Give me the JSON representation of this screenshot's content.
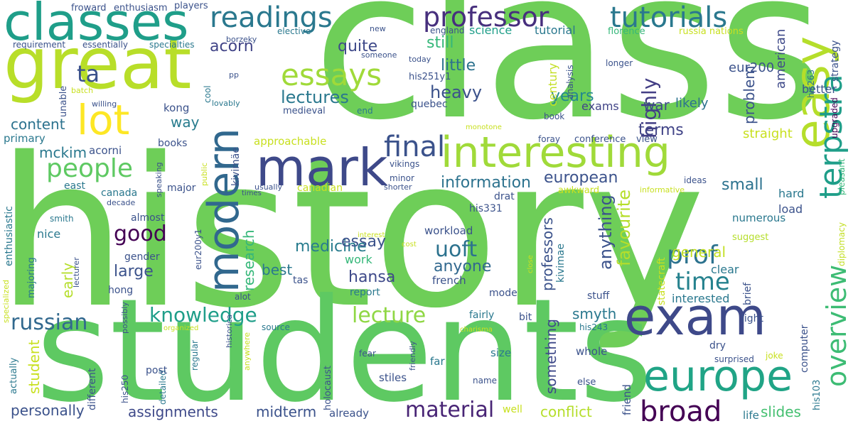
{
  "words": [
    {
      "text": "history",
      "color": "#6ece58"
    },
    {
      "text": "class",
      "color": "#6ece58"
    },
    {
      "text": "students",
      "color": "#5ec962"
    },
    {
      "text": "great",
      "color": "#b8de29"
    },
    {
      "text": "classes",
      "color": "#1f9e89"
    },
    {
      "text": "mark",
      "color": "#3e4989"
    },
    {
      "text": "exam",
      "color": "#3e4989"
    },
    {
      "text": "easy",
      "color": "#b5de2b"
    },
    {
      "text": "interesting",
      "color": "#a0da39"
    },
    {
      "text": "europe",
      "color": "#20a486"
    },
    {
      "text": "modern",
      "color": "#31688e"
    },
    {
      "text": "lot",
      "color": "#fde725"
    },
    {
      "text": "readings",
      "color": "#2a788e"
    },
    {
      "text": "professor",
      "color": "#472f7d"
    },
    {
      "text": "tutorials",
      "color": "#2a788e"
    },
    {
      "text": "essays",
      "color": "#a0da39"
    },
    {
      "text": "final",
      "color": "#3b528b"
    },
    {
      "text": "terpstra",
      "color": "#1f9e89"
    },
    {
      "text": "broad",
      "color": "#440154"
    },
    {
      "text": "overview",
      "color": "#3dbc74"
    },
    {
      "text": "prof",
      "color": "#2c728e"
    },
    {
      "text": "time",
      "color": "#26828e"
    },
    {
      "text": "people",
      "color": "#5ec962"
    },
    {
      "text": "knowledge",
      "color": "#1f9e89"
    },
    {
      "text": "russian",
      "color": "#31688e"
    },
    {
      "text": "lecture",
      "color": "#8fd744"
    },
    {
      "text": "material",
      "color": "#482475"
    },
    {
      "text": "good",
      "color": "#440154"
    },
    {
      "text": "uoft",
      "color": "#2c728e"
    },
    {
      "text": "highly",
      "color": "#433e85"
    },
    {
      "text": "ta",
      "color": "#3b528b"
    },
    {
      "text": "lectures",
      "color": "#2a788e"
    },
    {
      "text": "heavy",
      "color": "#3b528b"
    },
    {
      "text": "quite",
      "color": "#3e4989"
    },
    {
      "text": "still",
      "color": "#35b779"
    },
    {
      "text": "little",
      "color": "#2c728e"
    },
    {
      "text": "acorn",
      "color": "#414487"
    },
    {
      "text": "years",
      "color": "#23898e"
    },
    {
      "text": "terms",
      "color": "#414487"
    },
    {
      "text": "war",
      "color": "#3e4989"
    },
    {
      "text": "content",
      "color": "#2c728e"
    },
    {
      "text": "way",
      "color": "#287c8e"
    },
    {
      "text": "mckim",
      "color": "#2a788e"
    },
    {
      "text": "information",
      "color": "#2c728e"
    },
    {
      "text": "european",
      "color": "#3b528b"
    },
    {
      "text": "small",
      "color": "#2c728e"
    },
    {
      "text": "medicine",
      "color": "#287c8e"
    },
    {
      "text": "essay",
      "color": "#3b528b"
    },
    {
      "text": "anyone",
      "color": "#31688e"
    },
    {
      "text": "hansa",
      "color": "#3e4989"
    },
    {
      "text": "best",
      "color": "#2a788e"
    },
    {
      "text": "large",
      "color": "#3b528b"
    },
    {
      "text": "general",
      "color": "#c2df23"
    },
    {
      "text": "favourite",
      "color": "#b5de2b"
    },
    {
      "text": "anything",
      "color": "#3b528b"
    },
    {
      "text": "smyth",
      "color": "#2a788e"
    },
    {
      "text": "professors",
      "color": "#3b528b"
    },
    {
      "text": "something",
      "color": "#3e4989"
    },
    {
      "text": "research",
      "color": "#35b779"
    },
    {
      "text": "student",
      "color": "#c8e020"
    },
    {
      "text": "early",
      "color": "#b5de2b"
    },
    {
      "text": "personally",
      "color": "#3b528b"
    },
    {
      "text": "assignments",
      "color": "#3e4989"
    },
    {
      "text": "midterm",
      "color": "#3b528b"
    },
    {
      "text": "conflict",
      "color": "#b5de2b"
    },
    {
      "text": "slides",
      "color": "#44bf70"
    },
    {
      "text": "problem",
      "color": "#3b528b"
    },
    {
      "text": "likely",
      "color": "#2c728e"
    },
    {
      "text": "straight",
      "color": "#c8e020"
    },
    {
      "text": "hard",
      "color": "#2a788e"
    },
    {
      "text": "load",
      "color": "#3b528b"
    },
    {
      "text": "clear",
      "color": "#2a788e"
    },
    {
      "text": "interested",
      "color": "#2a788e"
    },
    {
      "text": "eur200",
      "color": "#3b528b"
    },
    {
      "text": "american",
      "color": "#3e4989"
    },
    {
      "text": "exams",
      "color": "#414487"
    },
    {
      "text": "century",
      "color": "#c2df23"
    },
    {
      "text": "science",
      "color": "#1f9e89"
    },
    {
      "text": "tutorial",
      "color": "#2a788e"
    },
    {
      "text": "england",
      "color": "#3b528b"
    },
    {
      "text": "florence",
      "color": "#35b779"
    },
    {
      "text": "russia nations",
      "color": "#c8e020"
    },
    {
      "text": "better",
      "color": "#3b528b"
    },
    {
      "text": "strategy",
      "color": "#3b528b"
    },
    {
      "text": "upgraded",
      "color": "#440154"
    },
    {
      "text": "his263",
      "color": "#2c728e"
    },
    {
      "text": "pleasant",
      "color": "#35b779"
    },
    {
      "text": "diplomacy",
      "color": "#c2df23"
    },
    {
      "text": "statecraft",
      "color": "#c8e020"
    },
    {
      "text": "suggest",
      "color": "#b5de2b"
    },
    {
      "text": "numerous",
      "color": "#2a788e"
    },
    {
      "text": "informative",
      "color": "#c8e020"
    },
    {
      "text": "ideas",
      "color": "#3b528b"
    },
    {
      "text": "awkward",
      "color": "#c8e020"
    },
    {
      "text": "conference",
      "color": "#3b528b"
    },
    {
      "text": "view",
      "color": "#3b528b"
    },
    {
      "text": "foray",
      "color": "#3b528b"
    },
    {
      "text": "book",
      "color": "#3b528b"
    },
    {
      "text": "analysis",
      "color": "#3b528b"
    },
    {
      "text": "longer",
      "color": "#3b528b"
    },
    {
      "text": "monotone",
      "color": "#c8e020"
    },
    {
      "text": "froward",
      "color": "#3b528b"
    },
    {
      "text": "enthusiasm",
      "color": "#3b528b"
    },
    {
      "text": "players",
      "color": "#3b528b"
    },
    {
      "text": "requirement",
      "color": "#3b528b"
    },
    {
      "text": "essentially",
      "color": "#3b528b"
    },
    {
      "text": "specialties",
      "color": "#2a788e"
    },
    {
      "text": "borzeky",
      "color": "#3b528b"
    },
    {
      "text": "elective",
      "color": "#2a788e"
    },
    {
      "text": "new",
      "color": "#3b528b"
    },
    {
      "text": "someone",
      "color": "#3b528b"
    },
    {
      "text": "today",
      "color": "#3b528b"
    },
    {
      "text": "his251y1",
      "color": "#3b528b"
    },
    {
      "text": "pp",
      "color": "#3b528b"
    },
    {
      "text": "lovably",
      "color": "#2a788e"
    },
    {
      "text": "cool",
      "color": "#2a788e"
    },
    {
      "text": "batch",
      "color": "#c8e020"
    },
    {
      "text": "willing",
      "color": "#3b528b"
    },
    {
      "text": "unable",
      "color": "#3b528b"
    },
    {
      "text": "kong",
      "color": "#3b528b"
    },
    {
      "text": "primary",
      "color": "#2a788e"
    },
    {
      "text": "acorni",
      "color": "#3b528b"
    },
    {
      "text": "kivimäe",
      "color": "#3b528b"
    },
    {
      "text": "end",
      "color": "#2a788e"
    },
    {
      "text": "medieval",
      "color": "#3b528b"
    },
    {
      "text": "quebec",
      "color": "#3b528b"
    },
    {
      "text": "approachable",
      "color": "#c8e020"
    },
    {
      "text": "books",
      "color": "#3b528b"
    },
    {
      "text": "canada",
      "color": "#2a788e"
    },
    {
      "text": "east",
      "color": "#2a788e"
    },
    {
      "text": "public",
      "color": "#c8e020"
    },
    {
      "text": "speaking",
      "color": "#3b528b"
    },
    {
      "text": "major",
      "color": "#3b528b"
    },
    {
      "text": "vikings",
      "color": "#3b528b"
    },
    {
      "text": "minor",
      "color": "#3b528b"
    },
    {
      "text": "canadian",
      "color": "#c8e020"
    },
    {
      "text": "usually",
      "color": "#3b528b"
    },
    {
      "text": "shorter",
      "color": "#3b528b"
    },
    {
      "text": "drat",
      "color": "#3b528b"
    },
    {
      "text": "decade",
      "color": "#3b528b"
    },
    {
      "text": "times",
      "color": "#3b528b"
    },
    {
      "text": "his331",
      "color": "#3b528b"
    },
    {
      "text": "almost",
      "color": "#3b528b"
    },
    {
      "text": "smith",
      "color": "#2a788e"
    },
    {
      "text": "enthusiastic",
      "color": "#2a788e"
    },
    {
      "text": "nice",
      "color": "#2a788e"
    },
    {
      "text": "gender",
      "color": "#3b528b"
    },
    {
      "text": "eur200y1",
      "color": "#3b528b"
    },
    {
      "text": "hong",
      "color": "#3b528b"
    },
    {
      "text": "majoring",
      "color": "#2a788e"
    },
    {
      "text": "work",
      "color": "#35b779"
    },
    {
      "text": "tas",
      "color": "#3b528b"
    },
    {
      "text": "french",
      "color": "#3b528b"
    },
    {
      "text": "interest",
      "color": "#c8e020"
    },
    {
      "text": "cost",
      "color": "#c8e020"
    },
    {
      "text": "alot",
      "color": "#3b528b"
    },
    {
      "text": "report",
      "color": "#2a788e"
    },
    {
      "text": "mode",
      "color": "#3b528b"
    },
    {
      "text": "kivimae",
      "color": "#2a788e"
    },
    {
      "text": "close",
      "color": "#c8e020"
    },
    {
      "text": "workload",
      "color": "#3b528b"
    },
    {
      "text": "stuff",
      "color": "#3b528b"
    },
    {
      "text": "brief",
      "color": "#3b528b"
    },
    {
      "text": "fairly",
      "color": "#2a788e"
    },
    {
      "text": "bit",
      "color": "#3b528b"
    },
    {
      "text": "his243",
      "color": "#2a788e"
    },
    {
      "text": "light",
      "color": "#3b528b"
    },
    {
      "text": "lecturer",
      "color": "#3b528b"
    },
    {
      "text": "specialized",
      "color": "#c8e020"
    },
    {
      "text": "possibly",
      "color": "#3b528b"
    },
    {
      "text": "organized",
      "color": "#c8e020"
    },
    {
      "text": "historica",
      "color": "#3b528b"
    },
    {
      "text": "source",
      "color": "#2a788e"
    },
    {
      "text": "charisma",
      "color": "#c8e020"
    },
    {
      "text": "anywhere",
      "color": "#c8e020"
    },
    {
      "text": "regular",
      "color": "#2a788e"
    },
    {
      "text": "friendly",
      "color": "#3b528b"
    },
    {
      "text": "whole",
      "color": "#3b528b"
    },
    {
      "text": "computer",
      "color": "#3b528b"
    },
    {
      "text": "dry",
      "color": "#3b528b"
    },
    {
      "text": "surprised",
      "color": "#3b528b"
    },
    {
      "text": "joke",
      "color": "#c8e020"
    },
    {
      "text": "his103",
      "color": "#2a788e"
    },
    {
      "text": "actually",
      "color": "#2a788e"
    },
    {
      "text": "different",
      "color": "#3b528b"
    },
    {
      "text": "his250",
      "color": "#3b528b"
    },
    {
      "text": "detailed",
      "color": "#2a788e"
    },
    {
      "text": "post",
      "color": "#3b528b"
    },
    {
      "text": "holocaust",
      "color": "#3b528b"
    },
    {
      "text": "fear",
      "color": "#3b528b"
    },
    {
      "text": "size",
      "color": "#2a788e"
    },
    {
      "text": "far",
      "color": "#2a788e"
    },
    {
      "text": "stiles",
      "color": "#3b528b"
    },
    {
      "text": "already",
      "color": "#3b528b"
    },
    {
      "text": "name",
      "color": "#3b528b"
    },
    {
      "text": "well",
      "color": "#c8e020"
    },
    {
      "text": "friend",
      "color": "#3b528b"
    },
    {
      "text": "else",
      "color": "#3b528b"
    },
    {
      "text": "life",
      "color": "#2a788e"
    }
  ]
}
